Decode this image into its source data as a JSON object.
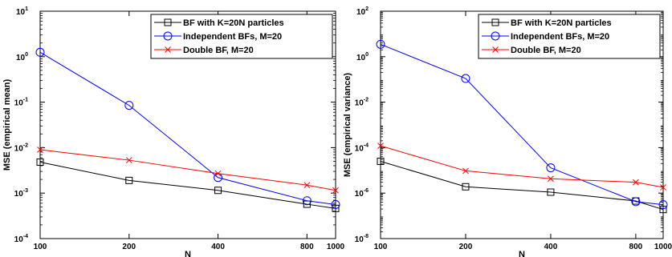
{
  "chart_data": [
    {
      "type": "line",
      "title": "",
      "xlabel": "N",
      "ylabel": "MSE (empirical mean)",
      "x_scale": "log",
      "y_scale": "log",
      "x": [
        100,
        200,
        400,
        800,
        1000
      ],
      "x_tick_labels": [
        "100",
        "200",
        "400",
        "800",
        "1000"
      ],
      "xlim": [
        100,
        1000
      ],
      "ylim": [
        0.0001,
        10
      ],
      "y_ticks": [
        {
          "value": 0.0001,
          "base": "10",
          "exp": "-4"
        },
        {
          "value": 0.001,
          "base": "10",
          "exp": "-3"
        },
        {
          "value": 0.01,
          "base": "10",
          "exp": "-2"
        },
        {
          "value": 0.1,
          "base": "10",
          "exp": "-1"
        },
        {
          "value": 1,
          "base": "10",
          "exp": "0"
        },
        {
          "value": 10,
          "base": "10",
          "exp": "1"
        }
      ],
      "grid": false,
      "legend_position": "top-right",
      "series": [
        {
          "name": "BF with K=20N particles",
          "color": "#000000",
          "marker": "square",
          "values": [
            0.0048,
            0.0019,
            0.00115,
            0.00057,
            0.00046
          ]
        },
        {
          "name": "Independent BFs, M=20",
          "color": "#0000ff",
          "marker": "circle",
          "values": [
            1.25,
            0.085,
            0.0022,
            0.00068,
            0.00056
          ]
        },
        {
          "name": "Double BF, M=20",
          "color": "#ff0000",
          "marker": "x",
          "values": [
            0.009,
            0.0053,
            0.0027,
            0.0015,
            0.00115
          ]
        }
      ]
    },
    {
      "type": "line",
      "title": "",
      "xlabel": "N",
      "ylabel": "MSE (empirical variance)",
      "x_scale": "log",
      "y_scale": "log",
      "x": [
        100,
        200,
        400,
        800,
        1000
      ],
      "x_tick_labels": [
        "100",
        "200",
        "400",
        "800",
        "1000"
      ],
      "xlim": [
        100,
        1000
      ],
      "ylim": [
        1e-08,
        100
      ],
      "y_ticks": [
        {
          "value": 1e-08,
          "base": "10",
          "exp": "-8"
        },
        {
          "value": 1e-06,
          "base": "10",
          "exp": "-6"
        },
        {
          "value": 0.0001,
          "base": "10",
          "exp": "-4"
        },
        {
          "value": 0.01,
          "base": "10",
          "exp": "-2"
        },
        {
          "value": 1,
          "base": "10",
          "exp": "0"
        },
        {
          "value": 100,
          "base": "10",
          "exp": "2"
        }
      ],
      "grid": false,
      "legend_position": "top-right",
      "series": [
        {
          "name": "BF with K=20N particles",
          "color": "#000000",
          "marker": "square",
          "values": [
            2.5e-05,
            1.9e-06,
            1.1e-06,
            4.5e-07,
            1.9e-07
          ]
        },
        {
          "name": "Independent BFs, M=20",
          "color": "#0000ff",
          "marker": "circle",
          "values": [
            3.5,
            0.11,
            1.3e-05,
            4.2e-07,
            3.1e-07
          ]
        },
        {
          "name": "Double BF, M=20",
          "color": "#ff0000",
          "marker": "x",
          "values": [
            0.00012,
            9.5e-06,
            4.3e-06,
            3e-06,
            1.8e-06
          ]
        }
      ]
    }
  ]
}
